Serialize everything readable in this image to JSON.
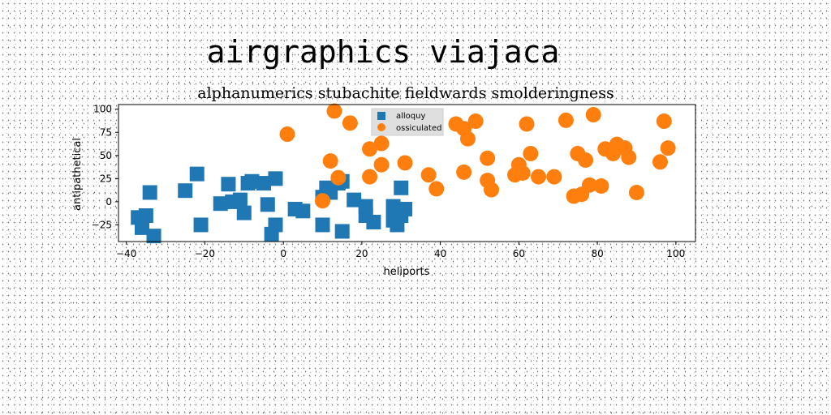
{
  "chart_data": {
    "type": "scatter",
    "suptitle": "airgraphics viajaca",
    "title": "alphanumerics stubachite fieldwards smolderingness",
    "xlabel": "heliports",
    "ylabel": "antipathetical",
    "xlim": [
      -42,
      105
    ],
    "ylim": [
      -43,
      105
    ],
    "xticks": [
      -40,
      -20,
      0,
      20,
      40,
      60,
      80,
      100
    ],
    "yticks": [
      -25,
      0,
      25,
      50,
      75,
      100
    ],
    "grid": false,
    "legend_position": "top-center",
    "series": [
      {
        "name": "alloquy",
        "marker": "square",
        "color": "#1f77b4",
        "points": [
          [
            -37,
            -17
          ],
          [
            -35,
            -15
          ],
          [
            -36,
            -28
          ],
          [
            -34,
            10
          ],
          [
            -33,
            -37
          ],
          [
            -25,
            12
          ],
          [
            -22,
            30
          ],
          [
            -21,
            -25
          ],
          [
            -16,
            -2
          ],
          [
            -14,
            19
          ],
          [
            -13,
            0
          ],
          [
            -11,
            2
          ],
          [
            -10,
            -12
          ],
          [
            -9,
            20
          ],
          [
            -8,
            22
          ],
          [
            -5,
            20
          ],
          [
            -4,
            -3
          ],
          [
            -3,
            -35
          ],
          [
            -2,
            25
          ],
          [
            -2,
            -25
          ],
          [
            3,
            -8
          ],
          [
            5,
            -10
          ],
          [
            10,
            -25
          ],
          [
            10,
            5
          ],
          [
            11,
            15
          ],
          [
            12,
            10
          ],
          [
            14,
            20
          ],
          [
            15,
            -32
          ],
          [
            15,
            22
          ],
          [
            18,
            2
          ],
          [
            21,
            -15
          ],
          [
            21,
            -5
          ],
          [
            23,
            -22
          ],
          [
            28,
            -5
          ],
          [
            28,
            -20
          ],
          [
            29,
            -25
          ],
          [
            30,
            -15
          ],
          [
            30,
            15
          ],
          [
            31,
            -8
          ]
        ]
      },
      {
        "name": "ossiculated",
        "marker": "circle",
        "color": "#ff7f0e",
        "points": [
          [
            1,
            73
          ],
          [
            10,
            1
          ],
          [
            12,
            44
          ],
          [
            13,
            98
          ],
          [
            14,
            26
          ],
          [
            17,
            85
          ],
          [
            22,
            57
          ],
          [
            22,
            27
          ],
          [
            25,
            63
          ],
          [
            25,
            40
          ],
          [
            31,
            42
          ],
          [
            37,
            29
          ],
          [
            39,
            14
          ],
          [
            44,
            84
          ],
          [
            46,
            79
          ],
          [
            46,
            32
          ],
          [
            47,
            68
          ],
          [
            49,
            87
          ],
          [
            52,
            47
          ],
          [
            52,
            23
          ],
          [
            53,
            13
          ],
          [
            59,
            29
          ],
          [
            60,
            40
          ],
          [
            61,
            31
          ],
          [
            62,
            84
          ],
          [
            63,
            52
          ],
          [
            65,
            27
          ],
          [
            69,
            27
          ],
          [
            72,
            88
          ],
          [
            74,
            6
          ],
          [
            75,
            52
          ],
          [
            76,
            8
          ],
          [
            77,
            45
          ],
          [
            78,
            18
          ],
          [
            79,
            94
          ],
          [
            81,
            17
          ],
          [
            82,
            57
          ],
          [
            84,
            52
          ],
          [
            85,
            62
          ],
          [
            87,
            58
          ],
          [
            88,
            48
          ],
          [
            90,
            10
          ],
          [
            96,
            43
          ],
          [
            97,
            87
          ],
          [
            98,
            58
          ]
        ]
      }
    ]
  }
}
